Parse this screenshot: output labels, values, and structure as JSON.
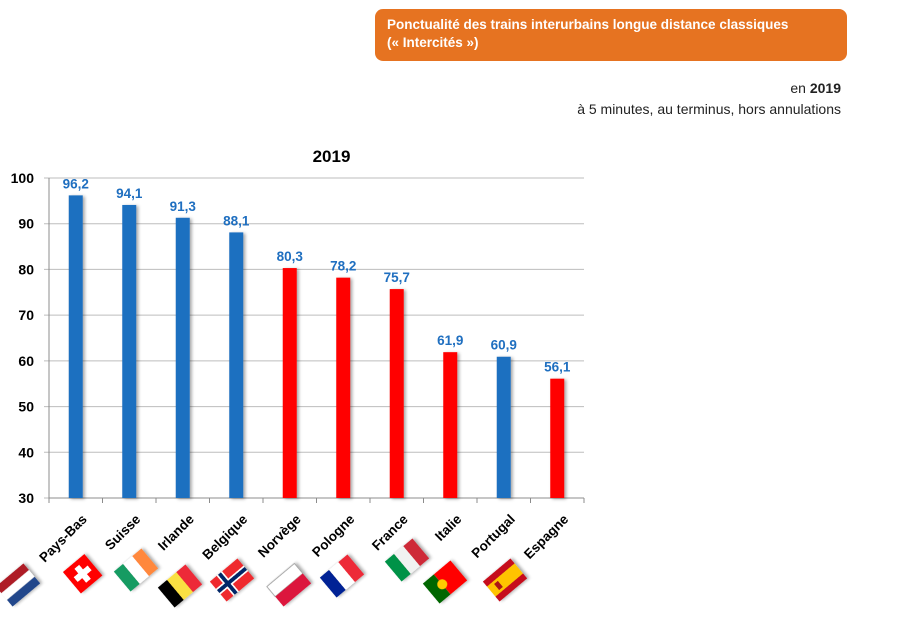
{
  "header": {
    "title_line1": "Ponctualité des trains interurbains longue distance classiques",
    "title_line2": "(« Intercités »)",
    "period_prefix": "en",
    "period_year": "2019",
    "criteria": "à 5 minutes, au terminus, hors annulations",
    "banner_color": "#e67321"
  },
  "chart_data": {
    "type": "bar",
    "title": "2019",
    "xlabel": "",
    "ylabel": "",
    "ylim": [
      30,
      100
    ],
    "yticks": [
      30,
      40,
      50,
      60,
      70,
      80,
      90,
      100
    ],
    "grid": true,
    "legend": "none",
    "categories": [
      "Pays-Bas",
      "Suisse",
      "Irlande",
      "Belgique",
      "Norvège",
      "Pologne",
      "France",
      "Italie",
      "Portugal",
      "Espagne"
    ],
    "values": [
      96.2,
      94.1,
      91.3,
      88.1,
      80.3,
      78.2,
      75.7,
      61.9,
      60.9,
      56.1
    ],
    "value_labels": [
      "96,2",
      "94,1",
      "91,3",
      "88,1",
      "80,3",
      "78,2",
      "75,7",
      "61,9",
      "60,9",
      "56,1"
    ],
    "bar_colors": [
      "#1f6fc0",
      "#1f6fc0",
      "#1f6fc0",
      "#1f6fc0",
      "#ff0000",
      "#ff0000",
      "#ff0000",
      "#ff0000",
      "#1f6fc0",
      "#ff0000"
    ],
    "label_color": "#1f6fc0",
    "flags": [
      "netherlands-flag",
      "switzerland-flag",
      "ireland-flag",
      "belgium-flag",
      "norway-flag",
      "poland-flag",
      "france-flag",
      "italy-flag",
      "portugal-flag",
      "spain-flag"
    ]
  }
}
